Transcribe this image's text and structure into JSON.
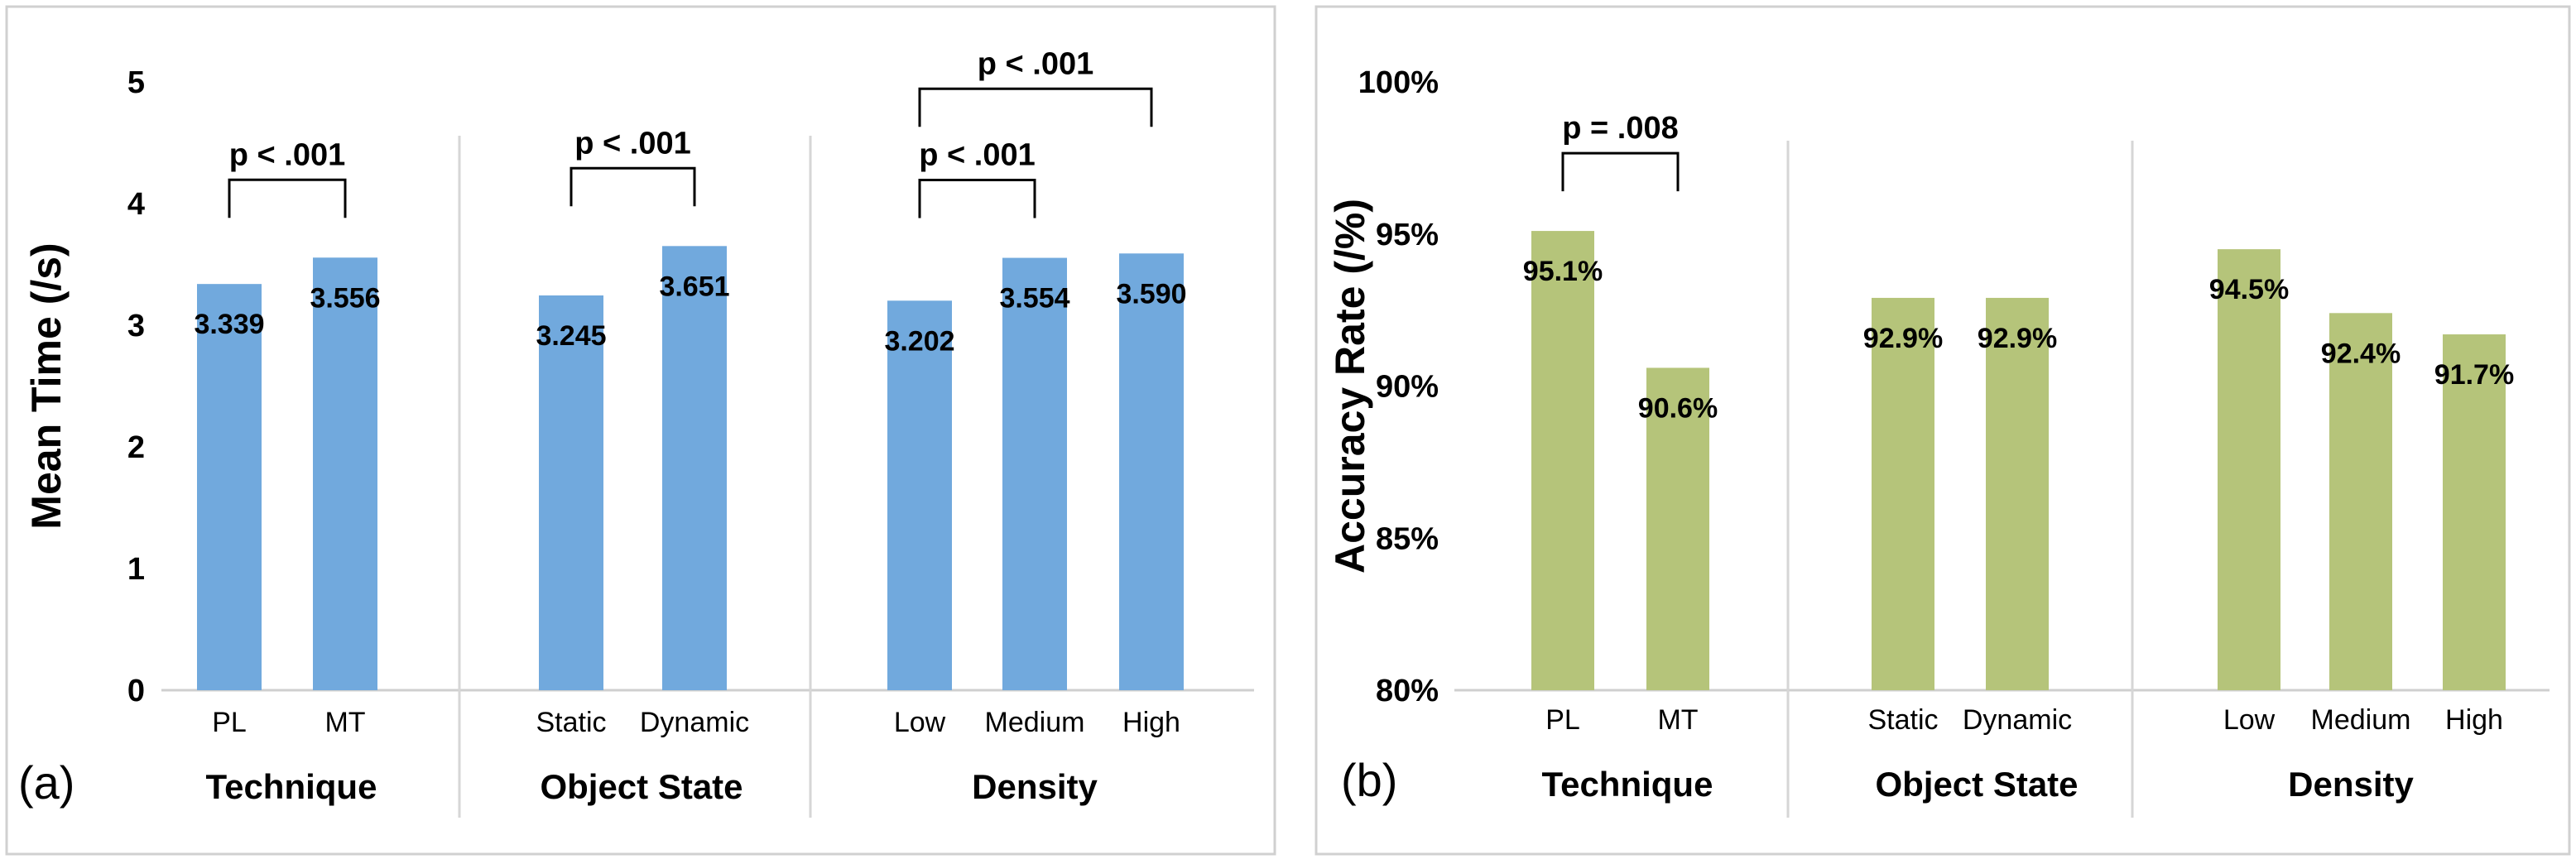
{
  "chart_data": [
    {
      "type": "bar",
      "panel_label": "(a)",
      "ylabel": "Mean Time (/s)",
      "ylim": [
        0,
        5
      ],
      "yticks": [
        "0",
        "1",
        "2",
        "3",
        "4",
        "5"
      ],
      "bar_color": "#71a9dd",
      "groups": [
        {
          "name": "Technique",
          "categories": [
            "PL",
            "MT"
          ],
          "values": [
            3.339,
            3.556
          ],
          "labels": [
            "3.339",
            "3.556"
          ]
        },
        {
          "name": "Object State",
          "categories": [
            "Static",
            "Dynamic"
          ],
          "values": [
            3.245,
            3.651
          ],
          "labels": [
            "3.245",
            "3.651"
          ]
        },
        {
          "name": "Density",
          "categories": [
            "Low",
            "Medium",
            "High"
          ],
          "values": [
            3.202,
            3.554,
            3.59
          ],
          "labels": [
            "3.202",
            "3.554",
            "3.590"
          ]
        }
      ],
      "annotations": [
        {
          "text": "p < .001",
          "group": 0,
          "from": 0,
          "to": 1,
          "level": 0
        },
        {
          "text": "p < .001",
          "group": 1,
          "from": 0,
          "to": 1,
          "level": 0
        },
        {
          "text": "p < .001",
          "group": 2,
          "from": 0,
          "to": 1,
          "level": 0
        },
        {
          "text": "p < .001",
          "group": 2,
          "from": 0,
          "to": 2,
          "level": 1
        }
      ]
    },
    {
      "type": "bar",
      "panel_label": "(b)",
      "ylabel": "Accuracy Rate (/%)",
      "ylim": [
        80,
        100
      ],
      "yticks": [
        "80%",
        "85%",
        "90%",
        "95%",
        "100%"
      ],
      "bar_color": "#b5c47a",
      "groups": [
        {
          "name": "Technique",
          "categories": [
            "PL",
            "MT"
          ],
          "values": [
            95.1,
            90.6
          ],
          "labels": [
            "95.1%",
            "90.6%"
          ]
        },
        {
          "name": "Object State",
          "categories": [
            "Static",
            "Dynamic"
          ],
          "values": [
            92.9,
            92.9
          ],
          "labels": [
            "92.9%",
            "92.9%"
          ]
        },
        {
          "name": "Density",
          "categories": [
            "Low",
            "Medium",
            "High"
          ],
          "values": [
            94.5,
            92.4,
            91.7
          ],
          "labels": [
            "94.5%",
            "92.4%",
            "91.7%"
          ]
        }
      ],
      "annotations": [
        {
          "text": "p = .008",
          "group": 0,
          "from": 0,
          "to": 1,
          "level": 0
        }
      ]
    }
  ]
}
